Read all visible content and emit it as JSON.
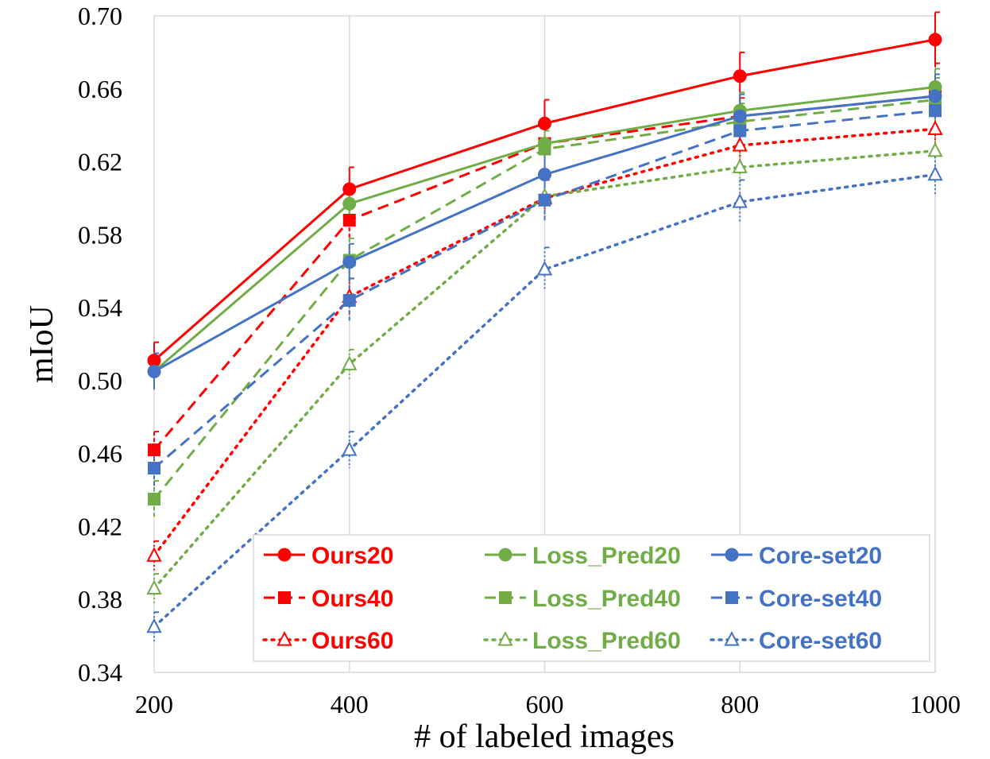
{
  "chart_data": {
    "type": "line",
    "xlabel": "# of labeled images",
    "ylabel": "mIoU",
    "x": [
      200,
      400,
      600,
      800,
      1000
    ],
    "xticks": [
      "200",
      "400",
      "600",
      "800",
      "1000"
    ],
    "ylim": [
      0.34,
      0.7
    ],
    "yticks": [
      "0.34",
      "0.38",
      "0.42",
      "0.46",
      "0.50",
      "0.54",
      "0.58",
      "0.62",
      "0.66",
      "0.70"
    ],
    "grid": "vertical",
    "legend_position": "bottom-right, inside, 3 columns",
    "colors": {
      "ours": "#ff0000",
      "loss_pred": "#70ad47",
      "core_set": "#4472c4"
    },
    "series": [
      {
        "name": "Ours20",
        "color": "#ff0000",
        "dash": "solid",
        "marker": "circle",
        "values": [
          0.511,
          0.605,
          0.641,
          0.667,
          0.687
        ],
        "err": [
          0.01,
          0.012,
          0.013,
          0.013,
          0.015
        ]
      },
      {
        "name": "Ours40",
        "color": "#ff0000",
        "dash": "dashed",
        "marker": "square",
        "values": [
          0.462,
          0.588,
          0.63,
          0.645,
          0.656
        ],
        "err": [
          0.01,
          0.01,
          0.01,
          0.01,
          0.018
        ]
      },
      {
        "name": "Ours60",
        "color": "#ff0000",
        "dash": "dotted",
        "marker": "open-triangle",
        "values": [
          0.404,
          0.546,
          0.6,
          0.629,
          0.638
        ],
        "err": [
          0.008,
          0.01,
          0.01,
          0.01,
          0.01
        ]
      },
      {
        "name": "Loss_Pred20",
        "color": "#70ad47",
        "dash": "solid",
        "marker": "circle",
        "values": [
          0.505,
          0.597,
          0.63,
          0.648,
          0.661
        ],
        "err": [
          0.008,
          0.01,
          0.01,
          0.01,
          0.01
        ]
      },
      {
        "name": "Loss_Pred40",
        "color": "#70ad47",
        "dash": "dashed",
        "marker": "square",
        "values": [
          0.435,
          0.566,
          0.627,
          0.642,
          0.654
        ],
        "err": [
          0.01,
          0.012,
          0.01,
          0.01,
          0.012
        ]
      },
      {
        "name": "Loss_Pred60",
        "color": "#70ad47",
        "dash": "dotted",
        "marker": "open-triangle",
        "values": [
          0.386,
          0.509,
          0.601,
          0.617,
          0.626
        ],
        "err": [
          0.008,
          0.008,
          0.01,
          0.01,
          0.01
        ]
      },
      {
        "name": "Core-set20",
        "color": "#4472c4",
        "dash": "solid",
        "marker": "circle",
        "values": [
          0.505,
          0.565,
          0.613,
          0.645,
          0.656
        ],
        "err": [
          0.01,
          0.01,
          0.012,
          0.012,
          0.012
        ]
      },
      {
        "name": "Core-set40",
        "color": "#4472c4",
        "dash": "dashed",
        "marker": "square",
        "values": [
          0.452,
          0.544,
          0.599,
          0.637,
          0.648
        ],
        "err": [
          0.01,
          0.012,
          0.012,
          0.012,
          0.012
        ]
      },
      {
        "name": "Core-set60",
        "color": "#4472c4",
        "dash": "dotted",
        "marker": "open-triangle",
        "values": [
          0.365,
          0.462,
          0.561,
          0.598,
          0.613
        ],
        "err": [
          0.008,
          0.01,
          0.012,
          0.012,
          0.012
        ]
      }
    ]
  }
}
